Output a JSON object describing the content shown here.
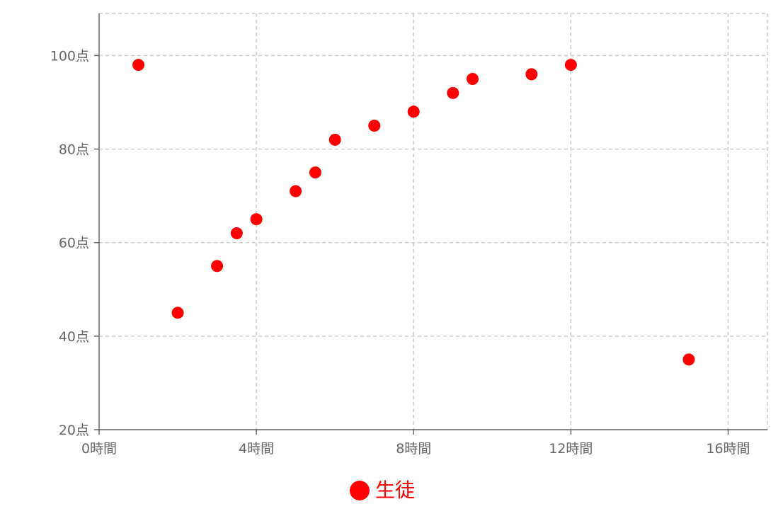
{
  "chart_data": {
    "type": "scatter",
    "title": "",
    "xlabel": "",
    "ylabel": "",
    "xlim": [
      0,
      17
    ],
    "ylim": [
      20,
      109
    ],
    "x_ticks": [
      0,
      4,
      8,
      12,
      16
    ],
    "y_ticks": [
      20,
      40,
      60,
      80,
      100
    ],
    "x_tick_labels": [
      "0時間",
      "4時間",
      "8時間",
      "12時間",
      "16時間"
    ],
    "y_tick_labels": [
      "20点",
      "40点",
      "60点",
      "80点",
      "100点"
    ],
    "grid": true,
    "legend_position": "bottom",
    "series": [
      {
        "name": "生徒",
        "color": "#ff0000",
        "points": [
          {
            "x": 1,
            "y": 98
          },
          {
            "x": 2,
            "y": 45
          },
          {
            "x": 3,
            "y": 55
          },
          {
            "x": 3.5,
            "y": 62
          },
          {
            "x": 4,
            "y": 65
          },
          {
            "x": 5,
            "y": 71
          },
          {
            "x": 5.5,
            "y": 75
          },
          {
            "x": 6,
            "y": 82
          },
          {
            "x": 7,
            "y": 85
          },
          {
            "x": 8,
            "y": 88
          },
          {
            "x": 9,
            "y": 92
          },
          {
            "x": 9.5,
            "y": 95
          },
          {
            "x": 11,
            "y": 96
          },
          {
            "x": 12,
            "y": 98
          },
          {
            "x": 15,
            "y": 35
          }
        ]
      }
    ]
  }
}
